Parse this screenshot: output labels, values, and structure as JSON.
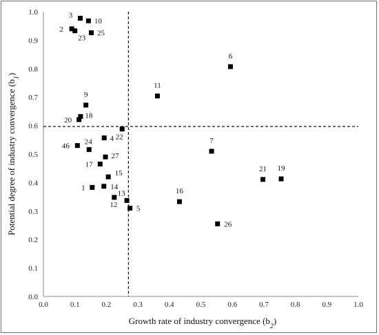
{
  "chart_data": {
    "type": "scatter",
    "xlabel": "Growth rate of industry convergence (b",
    "xlabel_sub": "2",
    "xlabel_close": ")",
    "ylabel": "Potential degree of industry convergence (b",
    "ylabel_sub": "1",
    "ylabel_close": ")",
    "xlim": [
      0,
      1
    ],
    "ylim": [
      0,
      1
    ],
    "xticks": [
      "0.0",
      "0.1",
      "0.2",
      "0.3",
      "0.4",
      "0.5",
      "0.6",
      "0.7",
      "0.8",
      "0.9",
      "1.0"
    ],
    "yticks": [
      "0.0",
      "0.1",
      "0.2",
      "0.3",
      "0.4",
      "0.5",
      "0.6",
      "0.7",
      "0.8",
      "0.9",
      "1.0"
    ],
    "reference_lines": {
      "x": 0.27,
      "y": 0.597
    },
    "grid": false,
    "marker": "square",
    "marker_color": "#000000",
    "points": [
      {
        "label": "1",
        "x": 0.155,
        "y": 0.383
      },
      {
        "label": "2",
        "x": 0.09,
        "y": 0.94
      },
      {
        "label": "3",
        "x": 0.117,
        "y": 0.977
      },
      {
        "label": "4",
        "x": 0.193,
        "y": 0.557
      },
      {
        "label": "5",
        "x": 0.275,
        "y": 0.31
      },
      {
        "label": "6",
        "x": 0.594,
        "y": 0.807
      },
      {
        "label": "7",
        "x": 0.534,
        "y": 0.51
      },
      {
        "label": "9",
        "x": 0.135,
        "y": 0.672
      },
      {
        "label": "10",
        "x": 0.143,
        "y": 0.968
      },
      {
        "label": "11",
        "x": 0.362,
        "y": 0.704
      },
      {
        "label": "12",
        "x": 0.225,
        "y": 0.348
      },
      {
        "label": "13",
        "x": 0.265,
        "y": 0.337
      },
      {
        "label": "14",
        "x": 0.192,
        "y": 0.387
      },
      {
        "label": "15",
        "x": 0.206,
        "y": 0.42
      },
      {
        "label": "16",
        "x": 0.432,
        "y": 0.333
      },
      {
        "label": "17",
        "x": 0.18,
        "y": 0.465
      },
      {
        "label": "18",
        "x": 0.118,
        "y": 0.632
      },
      {
        "label": "19",
        "x": 0.755,
        "y": 0.413
      },
      {
        "label": "20",
        "x": 0.113,
        "y": 0.621
      },
      {
        "label": "21",
        "x": 0.697,
        "y": 0.411
      },
      {
        "label": "22",
        "x": 0.25,
        "y": 0.588
      },
      {
        "label": "23",
        "x": 0.1,
        "y": 0.933
      },
      {
        "label": "24",
        "x": 0.145,
        "y": 0.516
      },
      {
        "label": "25",
        "x": 0.152,
        "y": 0.926
      },
      {
        "label": "26",
        "x": 0.553,
        "y": 0.255
      },
      {
        "label": "27",
        "x": 0.197,
        "y": 0.49
      },
      {
        "label": "46",
        "x": 0.108,
        "y": 0.53
      }
    ]
  }
}
